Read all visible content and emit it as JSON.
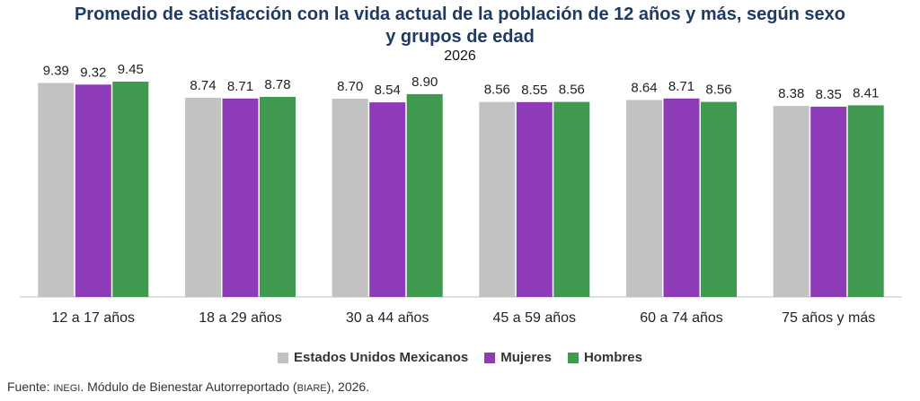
{
  "title": {
    "line1": "Promedio de satisfacción con la vida actual de la población de 12 años y más, según sexo",
    "line2": "y grupos de edad"
  },
  "subtitle": "2026",
  "legend": {
    "items": [
      {
        "label": "Estados Unidos Mexicanos",
        "color": "#c2c2c2"
      },
      {
        "label": "Mujeres",
        "color": "#8e3bb8"
      },
      {
        "label": "Hombres",
        "color": "#3f9a4f"
      }
    ]
  },
  "source": {
    "prefix": "Fuente: ",
    "org": "INEGI",
    "middle": ". Módulo de Bienestar Autorreportado (",
    "acronym": "BIARE",
    "suffix": "), 2026."
  },
  "chart_data": {
    "type": "bar",
    "title": "Promedio de satisfacción con la vida actual de la población de 12 años y más, según sexo y grupos de edad",
    "subtitle": "2026",
    "categories": [
      "12 a 17 años",
      "18 a 29 años",
      "30 a 44 años",
      "45 a 59 años",
      "60 a 74 años",
      "75 años y más"
    ],
    "series": [
      {
        "name": "Estados Unidos Mexicanos",
        "values": [
          9.39,
          8.74,
          8.7,
          8.56,
          8.64,
          8.38
        ],
        "color": "#c2c2c2"
      },
      {
        "name": "Mujeres",
        "values": [
          9.32,
          8.71,
          8.54,
          8.55,
          8.71,
          8.35
        ],
        "color": "#8e3bb8"
      },
      {
        "name": "Hombres",
        "values": [
          9.45,
          8.78,
          8.9,
          8.56,
          8.56,
          8.41
        ],
        "color": "#3f9a4f"
      }
    ],
    "ylim": [
      0,
      10
    ],
    "y_axis_visible": false,
    "grid": false,
    "data_labels": true,
    "legend_position": "bottom"
  }
}
